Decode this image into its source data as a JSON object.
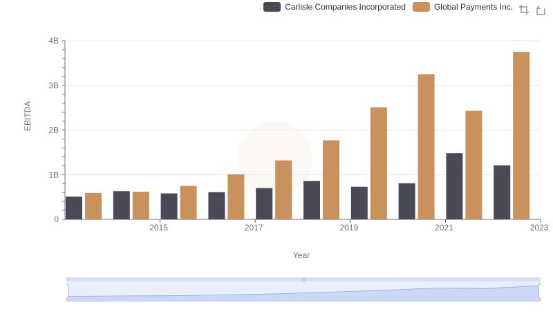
{
  "legend": {
    "items": [
      {
        "label": "Carlisle Companies Incorporated",
        "color": "#4a4a56"
      },
      {
        "label": "Global Payments Inc.",
        "color": "#c9915c"
      }
    ]
  },
  "toolbox": {
    "icons": [
      "zoom-icon",
      "zoom-reset-icon"
    ]
  },
  "chart_data": {
    "type": "bar",
    "categories": [
      "2014",
      "2015",
      "2016",
      "2017",
      "2018",
      "2019",
      "2020",
      "2021",
      "2022",
      "2023"
    ],
    "xticks": [
      "2015",
      "2017",
      "2019",
      "2021",
      "2023"
    ],
    "series": [
      {
        "name": "Carlisle Companies Incorporated",
        "color": "#4a4a56",
        "values": [
          0.51,
          0.63,
          0.58,
          0.61,
          0.7,
          0.86,
          0.73,
          0.81,
          1.48,
          1.21
        ]
      },
      {
        "name": "Global Payments Inc.",
        "color": "#c9915c",
        "values": [
          0.59,
          0.62,
          0.75,
          1.01,
          1.32,
          1.77,
          2.51,
          3.25,
          2.43,
          3.75
        ]
      }
    ],
    "xlabel": "Year",
    "ylabel": "EBITDA",
    "yticks": [
      "0",
      "1B",
      "2B",
      "3B",
      "4B"
    ],
    "ylim": [
      0,
      4
    ],
    "unit": "B",
    "grid": true,
    "legend_position": "top-right"
  }
}
